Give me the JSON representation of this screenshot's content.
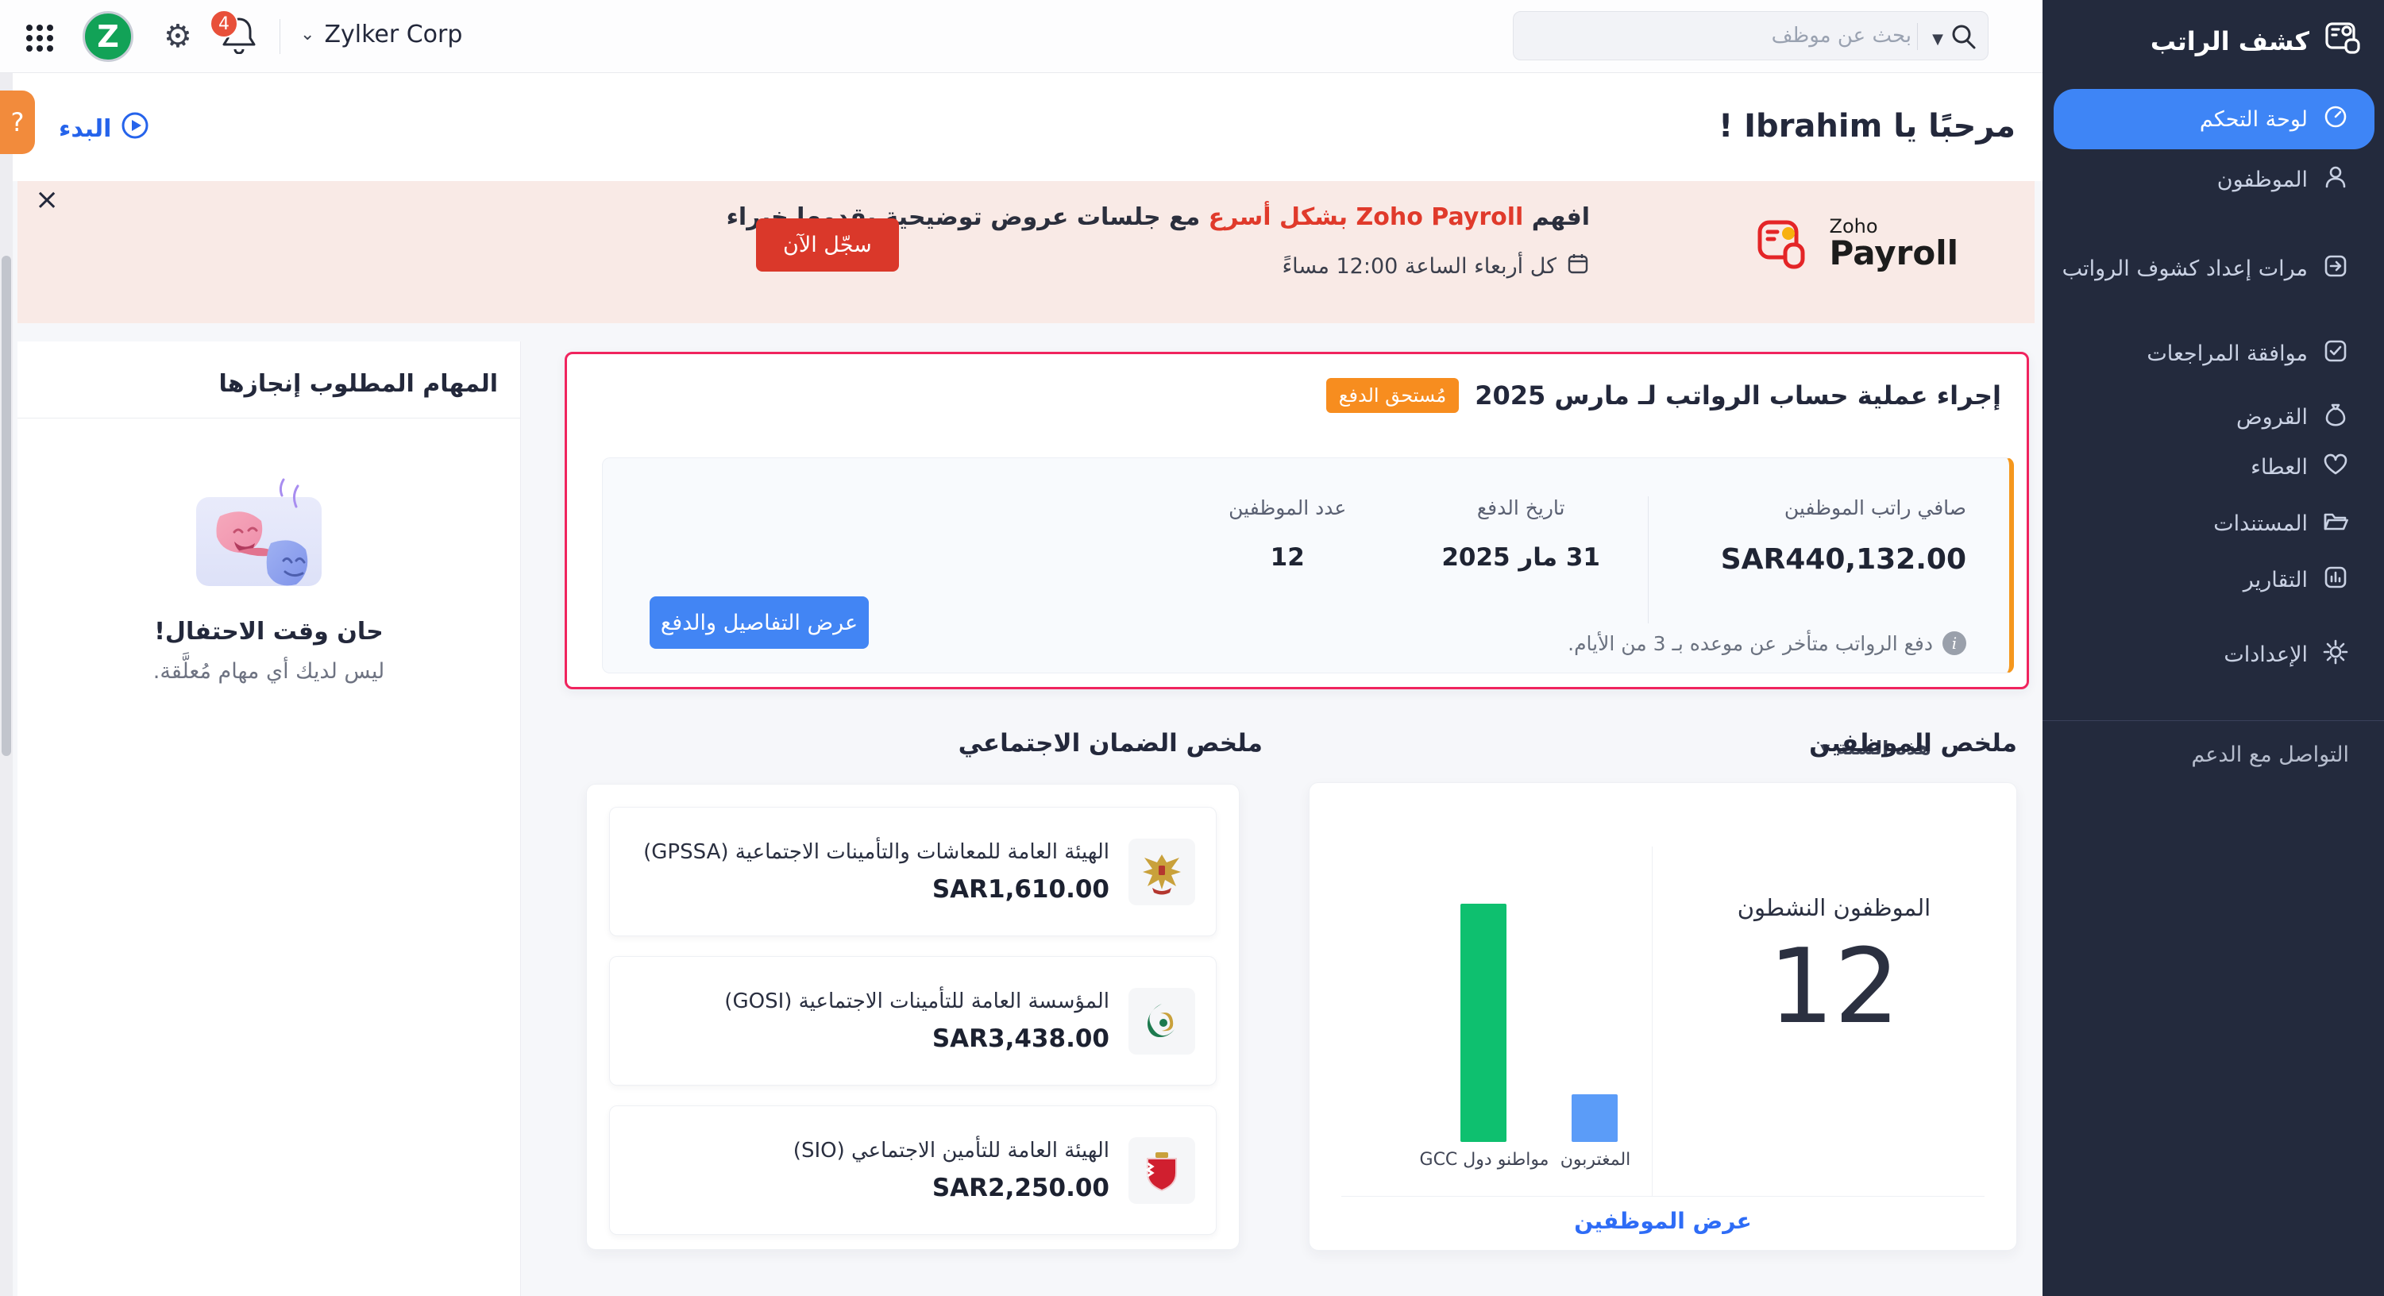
{
  "colors": {
    "accent_blue": "#3E85F6",
    "card_border_pink": "#F0245E",
    "badge_orange": "#F78D1F",
    "accent_bar_orange": "#F5971D",
    "cta_red": "#DA382A",
    "banner_pink": "#F9EAE6",
    "sidebar_navy": "#232A3D",
    "bar_green": "#0EC06F",
    "bar_blue": "#5B9CF8"
  },
  "topbar": {
    "company": "Zylker Corp",
    "search_placeholder": "بحث عن موظف",
    "notification_count": "4",
    "logo_letter": "Z"
  },
  "sidebar": {
    "app_title": "كشف الراتب",
    "items": [
      {
        "label": "لوحة التحكم"
      },
      {
        "label": "الموظفون"
      },
      {
        "label": "مرات إعداد كشوف الرواتب"
      },
      {
        "label": "موافقة المراجعات"
      },
      {
        "label": "القروض"
      },
      {
        "label": "العطاء"
      },
      {
        "label": "المستندات"
      },
      {
        "label": "التقارير"
      },
      {
        "label": "الإعدادات"
      }
    ],
    "support": "التواصل مع الدعم"
  },
  "header": {
    "greeting": "مرحبًا يا Ibrahim !",
    "get_started": "البدء",
    "help": "?"
  },
  "banner": {
    "close": "×",
    "logo_small": "Zoho",
    "logo_big": "Payroll",
    "line1_prefix": "افهم ",
    "line1_red1": "Zoho Payroll",
    "line1_mid": " ",
    "line1_red2": "بشكل أسرع",
    "line1_suffix": " مع جلسات عروض توضيحية يقدمها خبراء",
    "line2": "كل أربعاء الساعة 12:00 مساءً",
    "cta": "سجّل الآن"
  },
  "payroll_card": {
    "title": "إجراء عملية حساب الرواتب لـ مارس 2025",
    "badge": "مُستحق الدفع",
    "fields": [
      {
        "label": "صافي راتب الموظفين",
        "value": "SAR440,132.00"
      },
      {
        "label": "تاريخ الدفع",
        "value": "31 مار 2025"
      },
      {
        "label": "عدد الموظفين",
        "value": "12"
      }
    ],
    "cta": "عرض التفاصيل والدفع",
    "note": "دفع الرواتب متأخر عن موعده بـ 3 من الأيام."
  },
  "tasks": {
    "title": "المهام المطلوب إنجازها",
    "headline": "حان وقت الاحتفال!",
    "subtext": "ليس لديك أي مهام مُعلَّقة."
  },
  "social": {
    "title": "ملخص الضمان الاجتماعي",
    "filter": "هذه السنة",
    "items": [
      {
        "name": "الهيئة العامة للمعاشات والتأمينات الاجتماعية (GPSSA)",
        "amount": "SAR1,610.00",
        "icon": "uae-emblem-icon"
      },
      {
        "name": "المؤسسة العامة للتأمينات الاجتماعية (GOSI)",
        "amount": "SAR3,438.00",
        "icon": "gosi-logo-icon"
      },
      {
        "name": "الهيئة العامة للتأمين الاجتماعي (SIO)",
        "amount": "SAR2,250.00",
        "icon": "bahrain-emblem-icon"
      }
    ]
  },
  "employees": {
    "title": "ملخص الموظفين",
    "active_label": "الموظفون النشطون",
    "active_count": "12",
    "view_link": "عرض الموظفين"
  },
  "chart_data": {
    "type": "bar",
    "title": "ملخص الموظفين",
    "categories": [
      "مواطنو دول GCC",
      "المغتربون"
    ],
    "values": [
      10,
      2
    ],
    "colors": [
      "#0EC06F",
      "#5B9CF8"
    ],
    "ylim": [
      0,
      10
    ],
    "grid": false,
    "legend": "none",
    "xlabel": "",
    "ylabel": ""
  }
}
